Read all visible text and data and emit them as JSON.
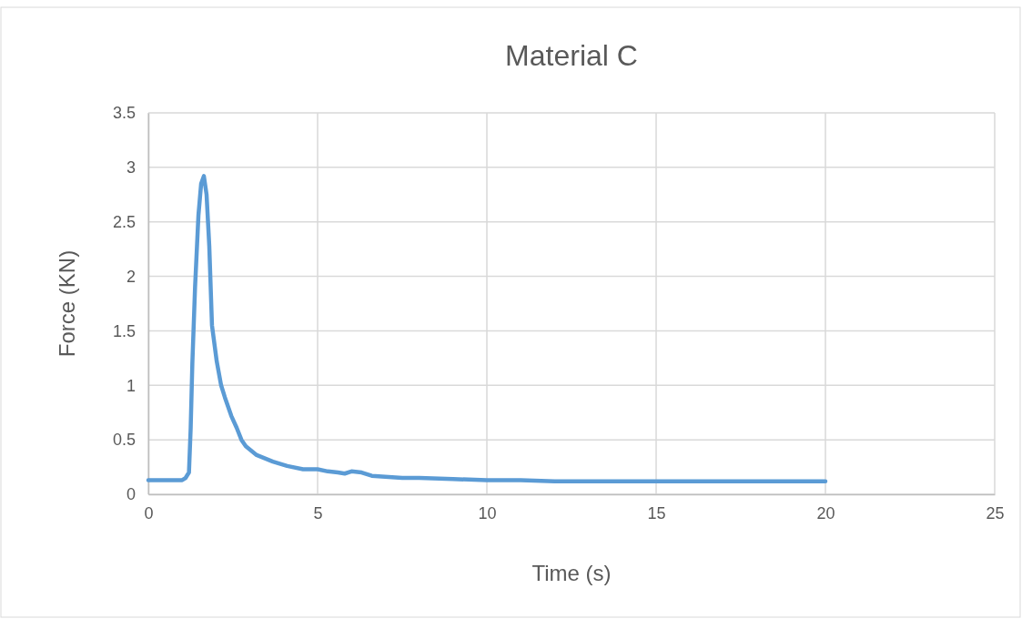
{
  "chart_data": {
    "type": "line",
    "title": "Material C",
    "xlabel": "Time (s)",
    "ylabel": "Force (KN)",
    "xlim": [
      0,
      25
    ],
    "xticks": [
      0,
      5,
      10,
      15,
      20,
      25
    ],
    "ylim": [
      0,
      3.5
    ],
    "yticks": [
      0,
      0.5,
      1,
      1.5,
      2,
      2.5,
      3,
      3.5
    ],
    "grid": true,
    "series": [
      {
        "color": "#5b9bd5",
        "x": [
          0,
          0.5,
          1.0,
          1.1,
          1.2,
          1.25,
          1.3,
          1.38,
          1.48,
          1.56,
          1.64,
          1.72,
          1.8,
          1.88,
          2.02,
          2.15,
          2.26,
          2.45,
          2.61,
          2.75,
          2.88,
          3.2,
          3.68,
          4.1,
          4.57,
          5,
          5.3,
          5.6,
          5.8,
          6.0,
          6.3,
          6.6,
          7,
          7.5,
          8,
          9,
          10,
          11,
          12,
          13,
          14,
          15,
          16,
          17,
          18,
          19,
          20
        ],
        "values": [
          0.13,
          0.13,
          0.13,
          0.15,
          0.2,
          0.6,
          1.2,
          1.9,
          2.56,
          2.85,
          2.92,
          2.75,
          2.28,
          1.55,
          1.22,
          1.0,
          0.89,
          0.72,
          0.61,
          0.5,
          0.44,
          0.36,
          0.3,
          0.26,
          0.23,
          0.23,
          0.21,
          0.2,
          0.19,
          0.21,
          0.2,
          0.17,
          0.16,
          0.15,
          0.15,
          0.14,
          0.13,
          0.13,
          0.12,
          0.12,
          0.12,
          0.12,
          0.12,
          0.12,
          0.12,
          0.12,
          0.12
        ]
      }
    ]
  }
}
